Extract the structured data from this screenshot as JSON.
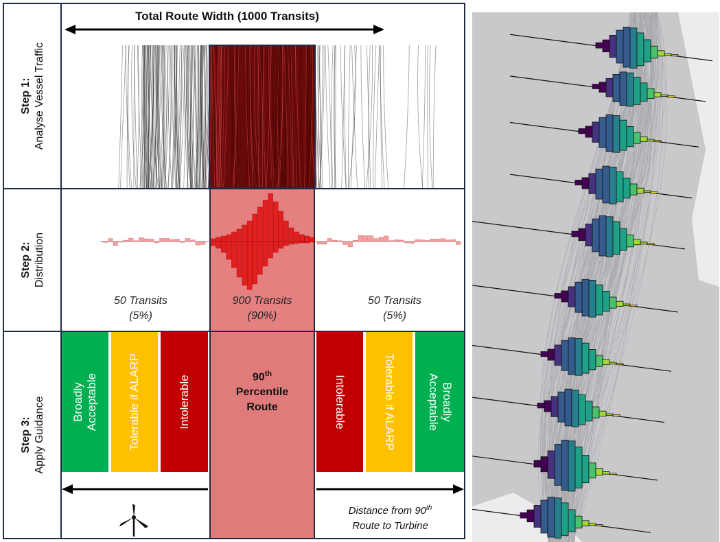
{
  "header": {
    "title": "Total Route Width (1000 Transits)"
  },
  "steps": [
    {
      "num": "Step 1:",
      "desc": "Analyse Vessel Traffic"
    },
    {
      "num": "Step 2:",
      "desc": "Distribution"
    },
    {
      "num": "Step 3:",
      "desc": "Apply Guidance"
    }
  ],
  "distribution": {
    "left": {
      "count": "50 Transits",
      "pct": "(5%)"
    },
    "center": {
      "count": "900 Transits",
      "pct": "(90%)"
    },
    "right": {
      "count": "50 Transits",
      "pct": "(5%)"
    }
  },
  "guidance": {
    "left": [
      {
        "label": "Broadly Acceptable",
        "line1": "Broadly",
        "line2": "Acceptable",
        "color": "#00b050"
      },
      {
        "label": "Tolerable if ALARP",
        "line1": "Tolerable if ALARP",
        "line2": "",
        "color": "#ffc000"
      },
      {
        "label": "Intolerable",
        "line1": "Intolerable",
        "line2": "",
        "color": "#c00000"
      }
    ],
    "center": {
      "line1": "90",
      "sup": "th",
      "line2": "Percentile",
      "line3": "Route",
      "color": "#e07b7b"
    },
    "right": [
      {
        "label": "Intolerable",
        "line1": "Intolerable",
        "line2": "",
        "color": "#c00000"
      },
      {
        "label": "Tolerable if ALARP",
        "line1": "Tolerable if ALARP",
        "line2": "",
        "color": "#ffc000"
      },
      {
        "label": "Broadly Acceptable",
        "line1": "Broadly",
        "line2": "Acceptable",
        "color": "#00b050"
      }
    ],
    "distance_line1": "Distance from 90",
    "distance_sup": "th",
    "distance_line2": "Route to Turbine"
  },
  "icons": {
    "turbine": "wind-turbine-icon",
    "arrow": "double-arrow-icon"
  },
  "colors": {
    "border": "#1f2a44",
    "track_dark": "#7a0e0e",
    "histogram": "#e00000",
    "map_bg": "#c9c9cc"
  }
}
